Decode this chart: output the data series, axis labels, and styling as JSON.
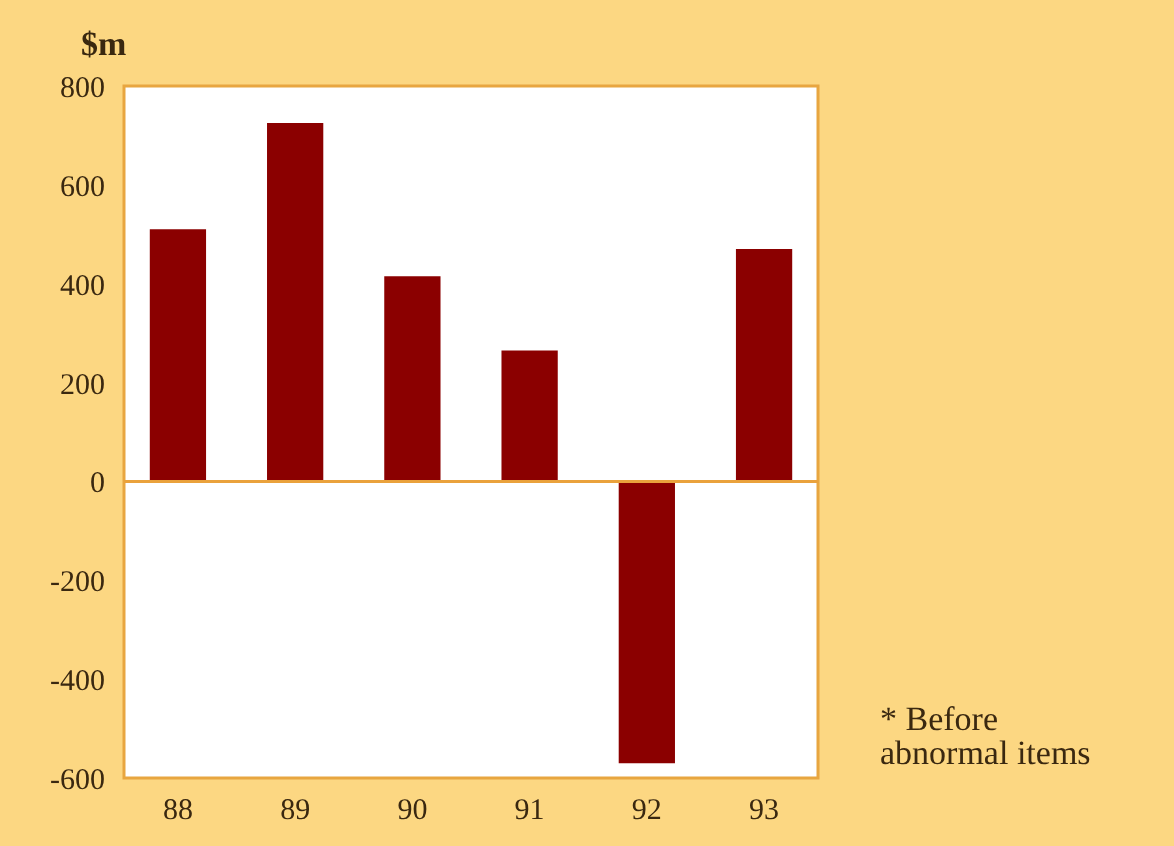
{
  "chart_data": {
    "type": "bar",
    "ylabel": "$m",
    "categories": [
      "88",
      "89",
      "90",
      "91",
      "92",
      "93"
    ],
    "values": [
      510,
      725,
      415,
      265,
      -570,
      470
    ],
    "color": "#8b0000",
    "ylim": [
      -600,
      800
    ],
    "yticks": [
      -600,
      -400,
      -200,
      0,
      200,
      400,
      600,
      800
    ],
    "grid": false,
    "ref_lines": [
      {
        "axis": "y",
        "value": 0,
        "color": "#eaa23c"
      }
    ],
    "annotations": [
      "* Before abnormal items"
    ]
  }
}
